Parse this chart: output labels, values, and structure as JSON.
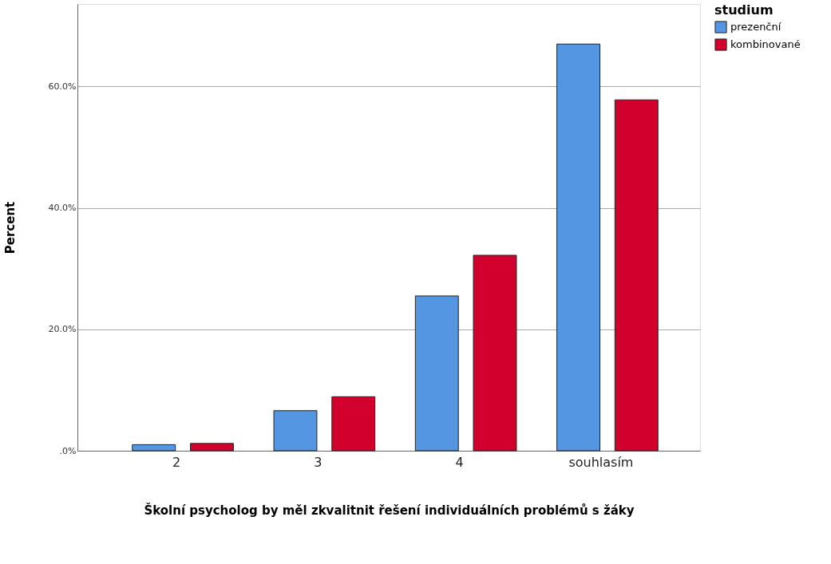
{
  "chart_data": {
    "type": "bar",
    "xlabel": "Školní psycholog by měl zkvalitnit řešení individuálních problémů s žáky",
    "ylabel": "Percent",
    "legend_title": "studium",
    "categories": [
      "2",
      "3",
      "4",
      "souhlasím"
    ],
    "series": [
      {
        "name": "prezenční",
        "color": "#5596e3",
        "values": [
          1.0,
          6.6,
          25.5,
          67.0
        ]
      },
      {
        "name": "kombinované",
        "color": "#d2002c",
        "values": [
          1.2,
          8.9,
          32.2,
          57.8
        ]
      }
    ],
    "ylim": [
      0,
      73.6
    ],
    "yticks": [
      {
        "value": 0,
        "label": ".0%"
      },
      {
        "value": 20,
        "label": "20.0%"
      },
      {
        "value": 40,
        "label": "40.0%"
      },
      {
        "value": 60,
        "label": "60.0%"
      }
    ],
    "grid": "y",
    "legend": "top right"
  }
}
